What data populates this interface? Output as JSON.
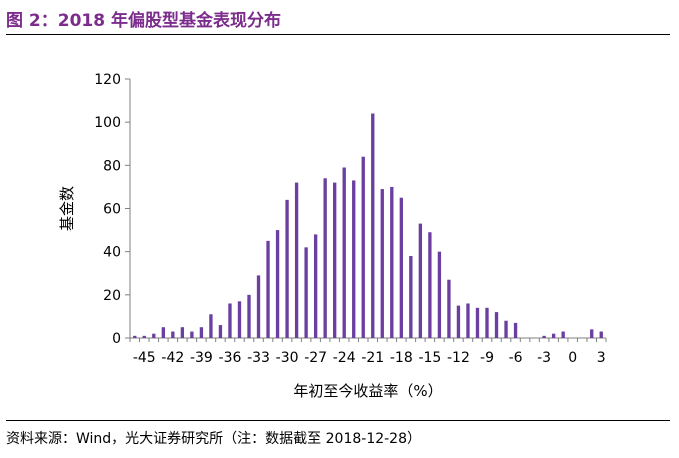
{
  "header": {
    "title": "图 2：2018 年偏股型基金表现分布"
  },
  "footer": {
    "source": "资料来源：Wind，光大证券研究所（注：数据截至 2018-12-28）"
  },
  "colors": {
    "bar": "#6A3FA0",
    "title": "#7B2C8C",
    "axis": "#808080",
    "text": "#000000"
  },
  "chart_data": {
    "type": "bar",
    "title": "图 2：2018 年偏股型基金表现分布",
    "xlabel": "年初至今收益率（%）",
    "ylabel": "基金数",
    "ylim": [
      0,
      120
    ],
    "y_ticks": [
      0,
      20,
      40,
      60,
      80,
      100,
      120
    ],
    "x_tick_labels": [
      "-45",
      "-42",
      "-39",
      "-36",
      "-33",
      "-30",
      "-27",
      "-24",
      "-21",
      "-18",
      "-15",
      "-12",
      "-9",
      "-6",
      "-3",
      "0",
      "3"
    ],
    "categories": [
      -46,
      -45,
      -44,
      -43,
      -42,
      -41,
      -40,
      -39,
      -38,
      -37,
      -36,
      -35,
      -34,
      -33,
      -32,
      -31,
      -30,
      -29,
      -28,
      -27,
      -26,
      -25,
      -24,
      -23,
      -22,
      -21,
      -20,
      -19,
      -18,
      -17,
      -16,
      -15,
      -14,
      -13,
      -12,
      -11,
      -10,
      -9,
      -8,
      -7,
      -6,
      -5,
      -4,
      -3,
      -2,
      -1,
      0,
      1,
      2,
      3
    ],
    "values": [
      1,
      1,
      2,
      5,
      3,
      5,
      3,
      5,
      11,
      6,
      16,
      17,
      20,
      29,
      45,
      50,
      64,
      72,
      42,
      48,
      74,
      72,
      79,
      73,
      84,
      104,
      69,
      70,
      65,
      38,
      53,
      49,
      40,
      27,
      15,
      16,
      14,
      14,
      12,
      8,
      7,
      0,
      0,
      1,
      2,
      3,
      0,
      0,
      4,
      3
    ]
  }
}
